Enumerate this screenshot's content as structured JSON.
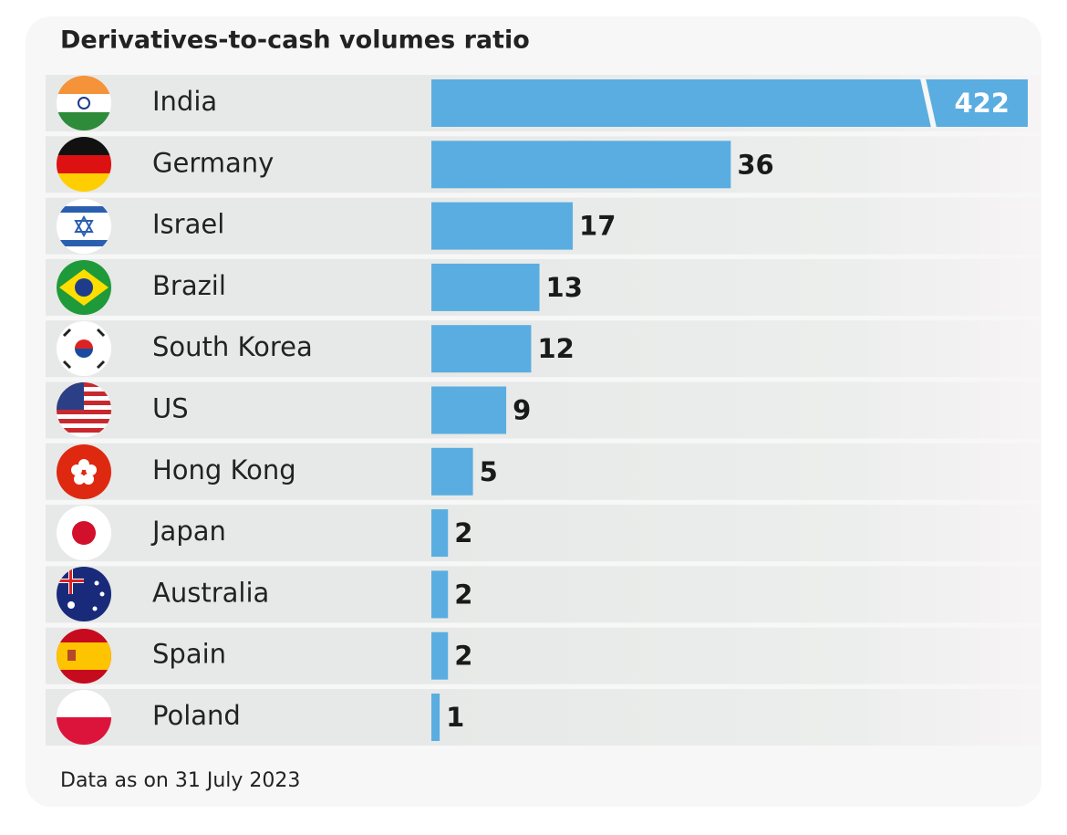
{
  "chart_data": {
    "type": "bar",
    "orientation": "horizontal",
    "title": "Derivatives-to-cash volumes ratio",
    "categories": [
      "India",
      "Germany",
      "Israel",
      "Brazil",
      "South Korea",
      "US",
      "Hong Kong",
      "Japan",
      "Australia",
      "Spain",
      "Poland"
    ],
    "values": [
      422,
      36,
      17,
      13,
      12,
      9,
      5,
      2,
      2,
      2,
      1
    ],
    "color": "#5aade0",
    "note": "Data as on 31 July 2023"
  }
}
